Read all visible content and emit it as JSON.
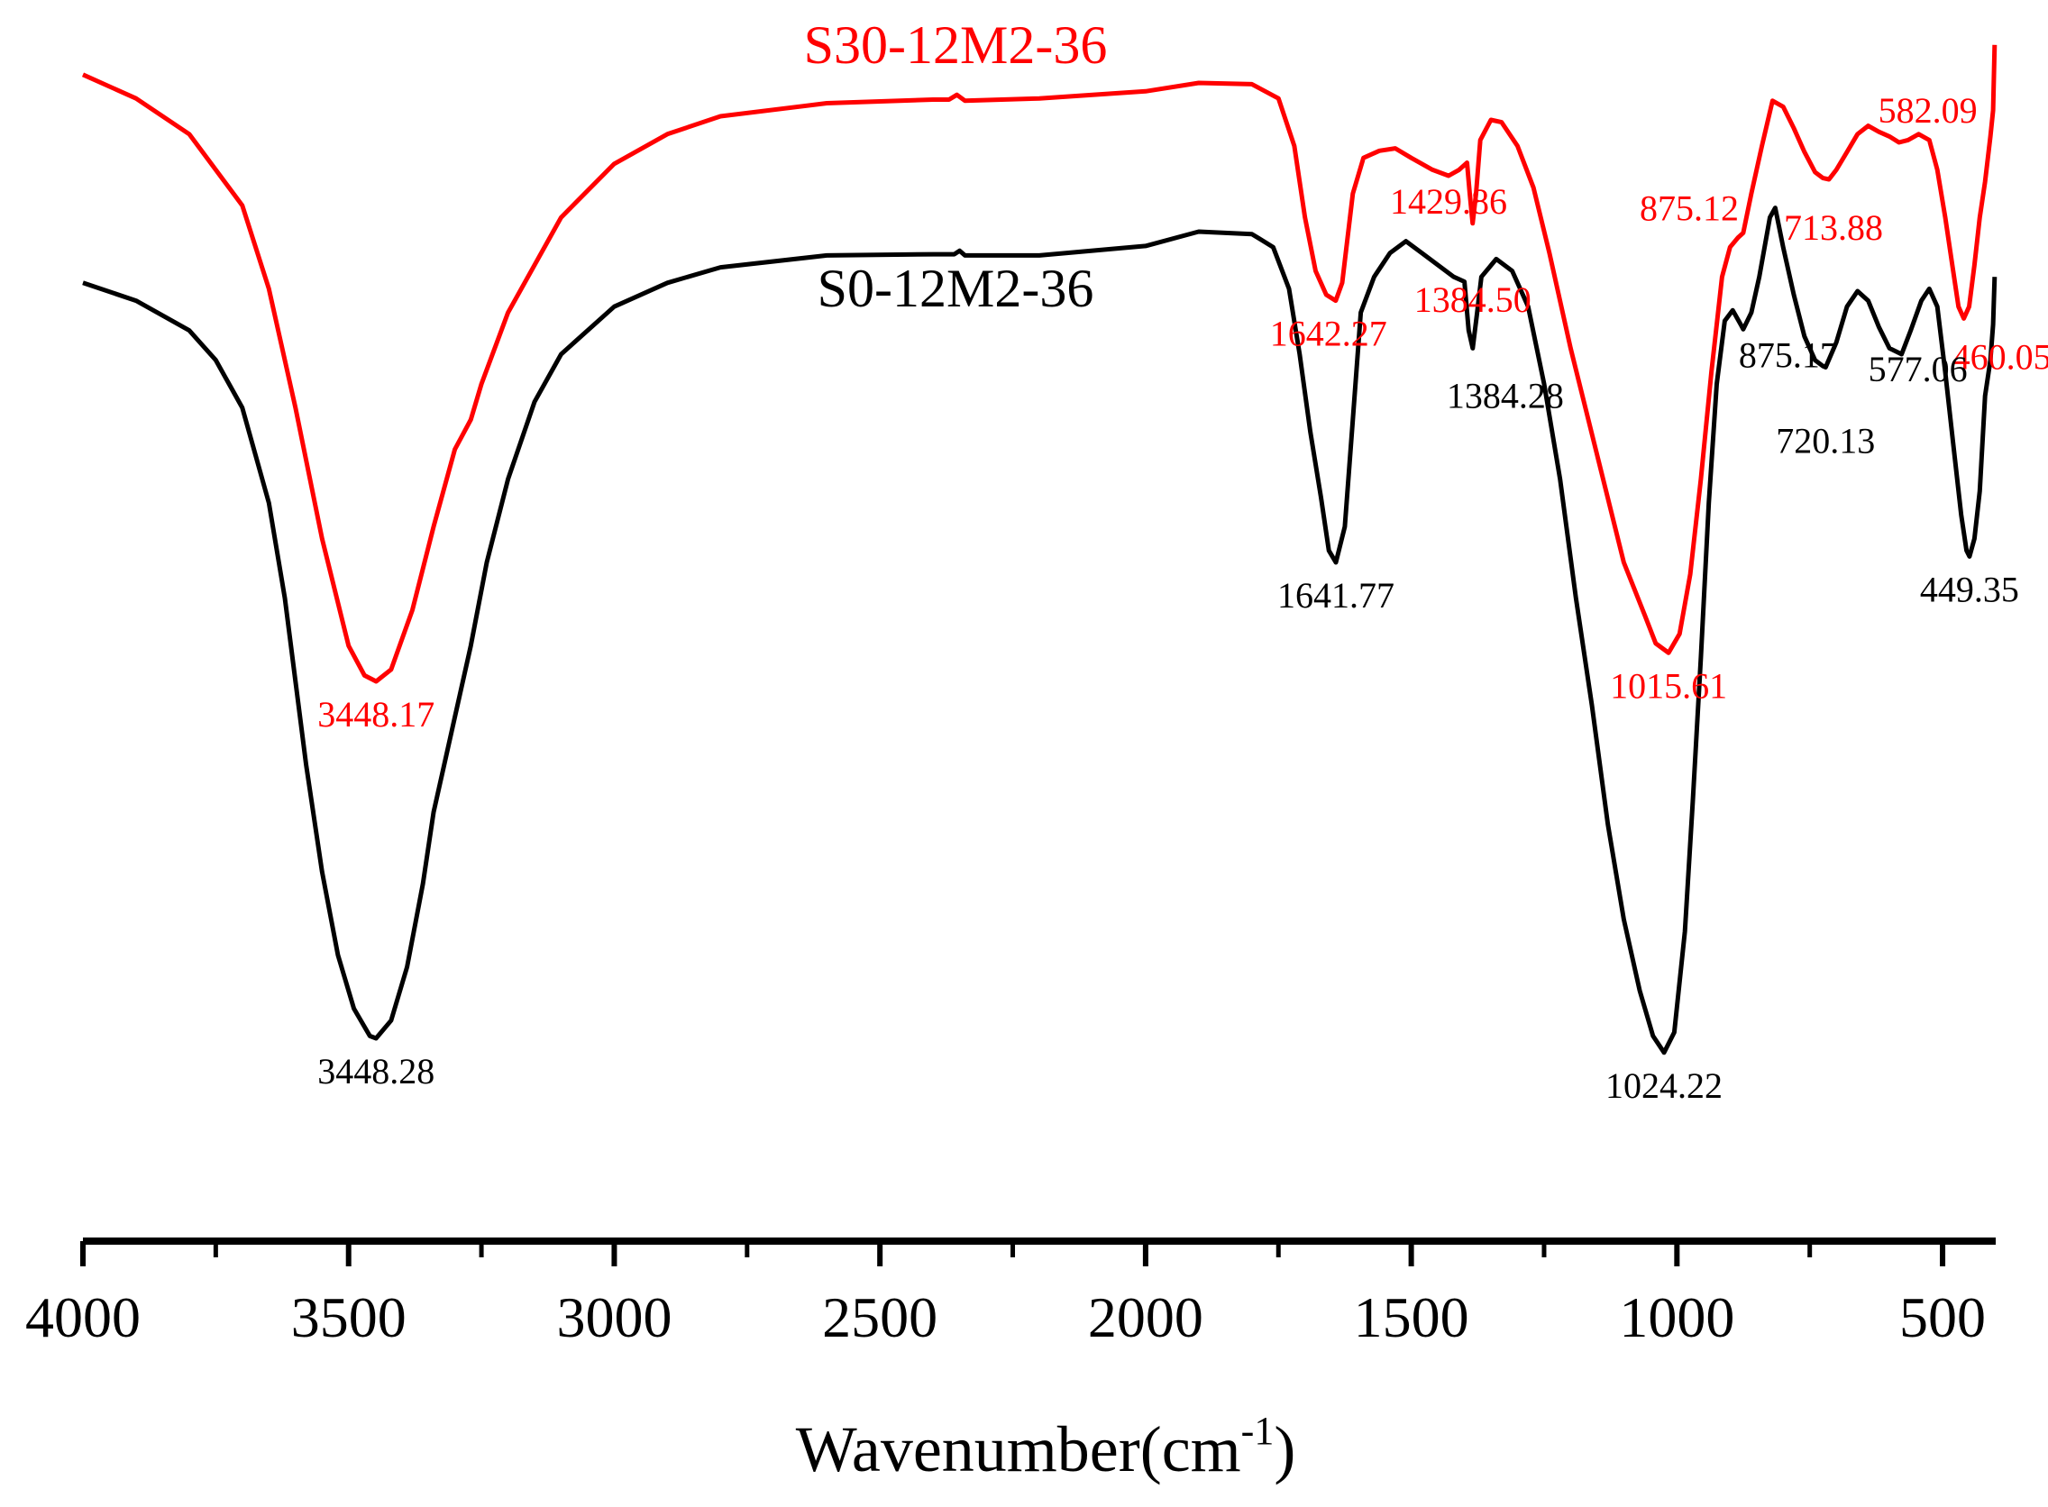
{
  "chart_data": {
    "type": "line",
    "title": "",
    "xlabel": "Wavenumber(cm",
    "xlabel_superscript": "-1",
    "xlabel_suffix": ")",
    "ylabel": "",
    "xlim": [
      4000,
      400
    ],
    "x_reversed": true,
    "ylim": [
      0,
      100
    ],
    "grid": false,
    "x_ticks": [
      4000,
      3500,
      3000,
      2500,
      2000,
      1500,
      1000,
      500
    ],
    "x_tick_labels": [
      "4000",
      "3500",
      "3000",
      "2500",
      "2000",
      "1500",
      "1000",
      "500"
    ],
    "x_minor_ticks": [
      3750,
      3250,
      2750,
      2250,
      1750,
      1250,
      750
    ],
    "series": [
      {
        "name": "S30-12M2-36",
        "color": "#ff0000",
        "points": [
          [
            4000,
            96
          ],
          [
            3900,
            94
          ],
          [
            3800,
            91
          ],
          [
            3700,
            85
          ],
          [
            3650,
            78
          ],
          [
            3600,
            68
          ],
          [
            3550,
            57
          ],
          [
            3500,
            48
          ],
          [
            3470,
            45.5
          ],
          [
            3448.17,
            45
          ],
          [
            3420,
            46
          ],
          [
            3380,
            51
          ],
          [
            3340,
            58
          ],
          [
            3300,
            64.5
          ],
          [
            3270,
            67
          ],
          [
            3250,
            70
          ],
          [
            3200,
            76
          ],
          [
            3100,
            84
          ],
          [
            3000,
            88.5
          ],
          [
            2900,
            91
          ],
          [
            2800,
            92.5
          ],
          [
            2600,
            93.6
          ],
          [
            2400,
            93.9
          ],
          [
            2370,
            93.9
          ],
          [
            2355,
            94.3
          ],
          [
            2340,
            93.8
          ],
          [
            2200,
            94
          ],
          [
            2000,
            94.6
          ],
          [
            1900,
            95.3
          ],
          [
            1800,
            95.2
          ],
          [
            1750,
            94
          ],
          [
            1720,
            90
          ],
          [
            1700,
            84
          ],
          [
            1680,
            79.5
          ],
          [
            1660,
            77.5
          ],
          [
            1642.27,
            77
          ],
          [
            1630,
            78.5
          ],
          [
            1610,
            86
          ],
          [
            1590,
            89
          ],
          [
            1560,
            89.6
          ],
          [
            1530,
            89.8
          ],
          [
            1500,
            89
          ],
          [
            1460,
            88
          ],
          [
            1429.86,
            87.5
          ],
          [
            1410,
            88
          ],
          [
            1395,
            88.6
          ],
          [
            1390,
            86
          ],
          [
            1384.5,
            83.5
          ],
          [
            1378,
            86
          ],
          [
            1370,
            90.5
          ],
          [
            1350,
            92.2
          ],
          [
            1330,
            92
          ],
          [
            1300,
            90
          ],
          [
            1270,
            86.5
          ],
          [
            1240,
            81
          ],
          [
            1200,
            73
          ],
          [
            1150,
            64
          ],
          [
            1100,
            55
          ],
          [
            1060,
            50.5
          ],
          [
            1040,
            48.2
          ],
          [
            1015.61,
            47.4
          ],
          [
            995,
            49
          ],
          [
            975,
            54
          ],
          [
            955,
            62
          ],
          [
            935,
            71
          ],
          [
            915,
            79
          ],
          [
            900,
            81.5
          ],
          [
            885,
            82.3
          ],
          [
            875.12,
            82.7
          ],
          [
            860,
            86
          ],
          [
            840,
            90
          ],
          [
            820,
            93.8
          ],
          [
            800,
            93.3
          ],
          [
            780,
            91.5
          ],
          [
            760,
            89.5
          ],
          [
            740,
            87.8
          ],
          [
            725,
            87.3
          ],
          [
            713.88,
            87.2
          ],
          [
            700,
            88
          ],
          [
            680,
            89.5
          ],
          [
            660,
            91
          ],
          [
            640,
            91.7
          ],
          [
            620,
            91.2
          ],
          [
            600,
            90.8
          ],
          [
            582.09,
            90.3
          ],
          [
            565,
            90.5
          ],
          [
            545,
            91
          ],
          [
            525,
            90.5
          ],
          [
            510,
            88
          ],
          [
            495,
            84
          ],
          [
            480,
            79.5
          ],
          [
            470,
            76.5
          ],
          [
            460.05,
            75.5
          ],
          [
            450,
            76.5
          ],
          [
            440,
            80
          ],
          [
            430,
            84
          ],
          [
            420,
            87
          ],
          [
            410,
            90.8
          ],
          [
            405,
            93
          ],
          [
            402,
            98.5
          ]
        ],
        "annotations": [
          {
            "x": 3448.17,
            "label": "3448.17"
          },
          {
            "x": 1642.27,
            "label": "1642.27"
          },
          {
            "x": 1429.86,
            "label": "1429.86"
          },
          {
            "x": 1384.5,
            "label": "1384.50"
          },
          {
            "x": 1015.61,
            "label": "1015.61"
          },
          {
            "x": 875.12,
            "label": "875.12"
          },
          {
            "x": 713.88,
            "label": "713.88"
          },
          {
            "x": 582.09,
            "label": "582.09"
          },
          {
            "x": 460.05,
            "label": "460.05"
          }
        ]
      },
      {
        "name": "S0-12M2-36",
        "color": "#000000",
        "points": [
          [
            4000,
            78.5
          ],
          [
            3900,
            77
          ],
          [
            3800,
            74.5
          ],
          [
            3750,
            72
          ],
          [
            3700,
            68
          ],
          [
            3650,
            60
          ],
          [
            3620,
            52
          ],
          [
            3600,
            45
          ],
          [
            3580,
            38
          ],
          [
            3550,
            29
          ],
          [
            3520,
            22
          ],
          [
            3490,
            17.5
          ],
          [
            3460,
            15.2
          ],
          [
            3448.28,
            15
          ],
          [
            3420,
            16.5
          ],
          [
            3390,
            21
          ],
          [
            3360,
            28
          ],
          [
            3340,
            34
          ],
          [
            3320,
            38
          ],
          [
            3300,
            42
          ],
          [
            3270,
            48
          ],
          [
            3240,
            55
          ],
          [
            3200,
            62
          ],
          [
            3150,
            68.5
          ],
          [
            3100,
            72.5
          ],
          [
            3000,
            76.5
          ],
          [
            2900,
            78.5
          ],
          [
            2800,
            79.8
          ],
          [
            2600,
            80.8
          ],
          [
            2400,
            80.9
          ],
          [
            2360,
            80.9
          ],
          [
            2350,
            81.2
          ],
          [
            2340,
            80.8
          ],
          [
            2200,
            80.8
          ],
          [
            2000,
            81.6
          ],
          [
            1900,
            82.8
          ],
          [
            1800,
            82.6
          ],
          [
            1760,
            81.5
          ],
          [
            1730,
            78
          ],
          [
            1710,
            72.5
          ],
          [
            1690,
            66
          ],
          [
            1670,
            60.5
          ],
          [
            1655,
            56
          ],
          [
            1641.77,
            55
          ],
          [
            1625,
            58
          ],
          [
            1610,
            67
          ],
          [
            1595,
            76
          ],
          [
            1570,
            79
          ],
          [
            1540,
            81
          ],
          [
            1510,
            82
          ],
          [
            1480,
            81
          ],
          [
            1450,
            80
          ],
          [
            1420,
            79
          ],
          [
            1400,
            78.6
          ],
          [
            1392,
            74.5
          ],
          [
            1384.28,
            73
          ],
          [
            1376,
            76
          ],
          [
            1368,
            79
          ],
          [
            1340,
            80.5
          ],
          [
            1310,
            79.5
          ],
          [
            1280,
            76.5
          ],
          [
            1250,
            70
          ],
          [
            1220,
            62
          ],
          [
            1190,
            52
          ],
          [
            1160,
            43
          ],
          [
            1130,
            33
          ],
          [
            1100,
            25
          ],
          [
            1070,
            19
          ],
          [
            1045,
            15.2
          ],
          [
            1024.22,
            13.8
          ],
          [
            1005,
            15.5
          ],
          [
            985,
            24
          ],
          [
            970,
            35
          ],
          [
            955,
            47
          ],
          [
            940,
            60
          ],
          [
            925,
            70
          ],
          [
            910,
            75.3
          ],
          [
            895,
            76.2
          ],
          [
            880,
            75
          ],
          [
            875.17,
            74.6
          ],
          [
            860,
            76
          ],
          [
            845,
            79
          ],
          [
            825,
            84
          ],
          [
            815,
            84.8
          ],
          [
            800,
            81.5
          ],
          [
            780,
            77.5
          ],
          [
            760,
            74
          ],
          [
            740,
            72
          ],
          [
            725,
            71.5
          ],
          [
            720.13,
            71.4
          ],
          [
            700,
            73.5
          ],
          [
            680,
            76.5
          ],
          [
            660,
            77.8
          ],
          [
            640,
            77
          ],
          [
            620,
            74.8
          ],
          [
            600,
            73
          ],
          [
            577.06,
            72.5
          ],
          [
            560,
            74.5
          ],
          [
            540,
            77
          ],
          [
            525,
            78
          ],
          [
            510,
            76.5
          ],
          [
            495,
            71
          ],
          [
            480,
            65
          ],
          [
            465,
            59
          ],
          [
            455,
            56
          ],
          [
            449.35,
            55.5
          ],
          [
            440,
            57
          ],
          [
            430,
            61
          ],
          [
            420,
            69
          ],
          [
            410,
            72
          ],
          [
            405,
            75
          ],
          [
            402,
            79
          ]
        ],
        "annotations": [
          {
            "x": 3448.28,
            "label": "3448.28"
          },
          {
            "x": 1641.77,
            "label": "1641.77"
          },
          {
            "x": 1384.28,
            "label": "1384.28"
          },
          {
            "x": 1024.22,
            "label": "1024.22"
          },
          {
            "x": 875.17,
            "label": "875.17"
          },
          {
            "x": 720.13,
            "label": "720.13"
          },
          {
            "x": 577.06,
            "label": "577.06"
          },
          {
            "x": 449.35,
            "label": "449.35"
          }
        ]
      }
    ]
  }
}
